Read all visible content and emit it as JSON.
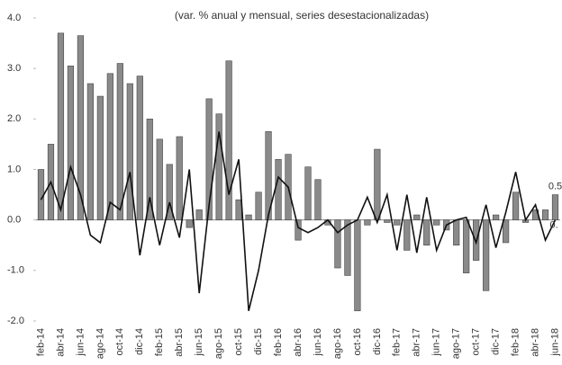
{
  "chart_data": {
    "type": "bar_line",
    "title": "(var. % anual y mensual, series desestacionalizadas)",
    "categories": [
      "feb-14",
      null,
      "abr-14",
      null,
      "jun-14",
      null,
      "ago-14",
      null,
      "oct-14",
      null,
      "dic-14",
      null,
      "feb-15",
      null,
      "abr-15",
      null,
      "jun-15",
      null,
      "ago-15",
      null,
      "oct-15",
      null,
      "dic-15",
      null,
      "feb-16",
      null,
      "abr-16",
      null,
      "jun-16",
      null,
      "ago-16",
      null,
      "oct-16",
      null,
      "dic-16",
      null,
      "feb-17",
      null,
      "abr-17",
      null,
      "jun-17",
      null,
      "ago-17",
      null,
      "oct-17",
      null,
      "dic-17",
      null,
      "feb-18",
      null,
      "abr-18",
      null,
      "jun-18"
    ],
    "series": [
      {
        "type": "bar",
        "color": "#8a8a8a",
        "values": [
          1.0,
          1.5,
          3.7,
          3.05,
          3.65,
          2.7,
          2.45,
          2.9,
          3.1,
          2.7,
          2.85,
          2.0,
          1.6,
          1.1,
          1.65,
          -0.15,
          0.2,
          2.4,
          2.1,
          3.15,
          0.4,
          0.1,
          0.55,
          1.75,
          1.2,
          1.3,
          -0.4,
          1.05,
          0.8,
          -0.1,
          -0.95,
          -1.1,
          -1.8,
          -0.1,
          1.4,
          -0.05,
          -0.1,
          -0.6,
          0.1,
          -0.5,
          -0.1,
          -0.2,
          -0.5,
          -1.05,
          -0.8,
          -1.4,
          0.1,
          -0.45,
          0.55,
          -0.05,
          0.2,
          0.2,
          0.5
        ],
        "value_labels": [
          null,
          null,
          null,
          null,
          null,
          null,
          null,
          null,
          null,
          null,
          null,
          null,
          null,
          null,
          null,
          null,
          null,
          null,
          null,
          null,
          null,
          null,
          null,
          null,
          null,
          null,
          null,
          null,
          null,
          null,
          null,
          null,
          null,
          null,
          null,
          null,
          null,
          null,
          null,
          null,
          null,
          null,
          null,
          null,
          null,
          null,
          null,
          null,
          null,
          null,
          null,
          null,
          "0.5"
        ]
      },
      {
        "type": "line",
        "color": "#111111",
        "values": [
          0.4,
          0.75,
          0.2,
          1.05,
          0.5,
          -0.3,
          -0.45,
          0.35,
          0.2,
          0.95,
          -0.7,
          0.45,
          -0.5,
          0.35,
          -0.35,
          1.0,
          -1.45,
          0.3,
          1.75,
          0.5,
          1.2,
          -1.8,
          -1.0,
          0.1,
          0.85,
          0.65,
          -0.15,
          -0.25,
          -0.15,
          0.0,
          -0.25,
          -0.1,
          0.0,
          0.45,
          -0.05,
          0.5,
          -0.6,
          0.5,
          -0.65,
          0.45,
          -0.6,
          -0.1,
          0.0,
          0.05,
          -0.45,
          0.3,
          -0.55,
          0.15,
          0.95,
          0.0,
          0.3,
          -0.4,
          0.0
        ],
        "value_labels": [
          null,
          null,
          null,
          null,
          null,
          null,
          null,
          null,
          null,
          null,
          null,
          null,
          null,
          null,
          null,
          null,
          null,
          null,
          null,
          null,
          null,
          null,
          null,
          null,
          null,
          null,
          null,
          null,
          null,
          null,
          null,
          null,
          null,
          null,
          null,
          null,
          null,
          null,
          null,
          null,
          null,
          null,
          null,
          null,
          null,
          null,
          null,
          null,
          null,
          null,
          null,
          null,
          "0."
        ]
      }
    ],
    "ylim": [
      -2,
      4
    ],
    "yticks": [
      {
        "value": -2,
        "label": "-2.0"
      },
      {
        "value": -1,
        "label": "-1.0"
      },
      {
        "value": 0,
        "label": "0.0"
      },
      {
        "value": 1,
        "label": "1.0"
      },
      {
        "value": 2,
        "label": "2.0"
      },
      {
        "value": 3,
        "label": "3.0"
      },
      {
        "value": 4,
        "label": "4.0"
      }
    ]
  }
}
